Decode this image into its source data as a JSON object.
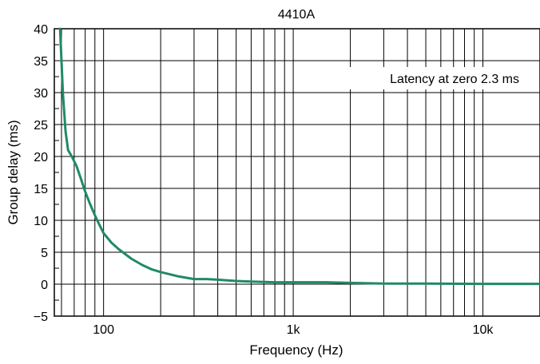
{
  "chart_data": {
    "type": "line",
    "title": "4410A",
    "xlabel": "Frequency (Hz)",
    "ylabel": "Group delay (ms)",
    "xscale": "log",
    "xlim": [
      55,
      20000
    ],
    "ylim": [
      -5,
      40
    ],
    "grid": true,
    "line_color": "#1f8a67",
    "x_ticks": [
      {
        "value": 100,
        "label": "100"
      },
      {
        "value": 1000,
        "label": "1k"
      },
      {
        "value": 10000,
        "label": "10k"
      }
    ],
    "y_ticks": [
      {
        "value": -5,
        "label": "−5"
      },
      {
        "value": 0,
        "label": "0"
      },
      {
        "value": 5,
        "label": "5"
      },
      {
        "value": 10,
        "label": "10"
      },
      {
        "value": 15,
        "label": "15"
      },
      {
        "value": 20,
        "label": "20"
      },
      {
        "value": 25,
        "label": "25"
      },
      {
        "value": 30,
        "label": "30"
      },
      {
        "value": 35,
        "label": "35"
      },
      {
        "value": 40,
        "label": "40"
      }
    ],
    "annotation": "Latency at zero 2.3 ms",
    "series": [
      {
        "x": [
          59,
          61,
          63,
          65,
          68,
          72,
          76,
          80,
          85,
          90,
          95,
          100,
          110,
          120,
          140,
          160,
          180,
          200,
          250,
          300,
          350,
          400,
          500,
          600,
          800,
          1000,
          1500,
          2000,
          3000,
          5000,
          10000,
          20000
        ],
        "y": [
          40,
          30,
          24,
          21,
          20,
          18.5,
          16.5,
          14.5,
          12.5,
          10.8,
          9.3,
          8.0,
          6.5,
          5.5,
          4.0,
          3.0,
          2.3,
          1.9,
          1.2,
          0.8,
          0.8,
          0.7,
          0.5,
          0.4,
          0.3,
          0.3,
          0.3,
          0.2,
          0.1,
          0.1,
          0.05,
          0.05
        ]
      }
    ]
  }
}
